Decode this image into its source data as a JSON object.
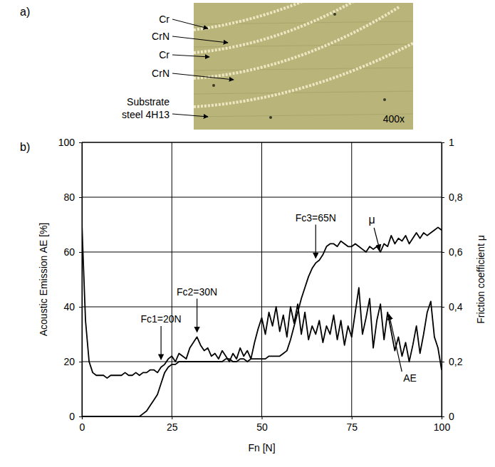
{
  "panel_a": {
    "label": "a)",
    "layers": [
      "Cr",
      "CrN",
      "Cr",
      "CrN"
    ],
    "substrate": "Substrate steel 4H13",
    "magnification": "400x"
  },
  "chart_data": {
    "type": "line",
    "panel_label": "b)",
    "x_label": "Fn [N]",
    "y_label": "Acoustic Emission AE [%]",
    "y2_label": "Friction coefficient μ",
    "xlim": [
      0,
      100
    ],
    "xticks": [
      0,
      25,
      50,
      75,
      100
    ],
    "ylim": [
      0,
      100
    ],
    "yticks": [
      0,
      20,
      40,
      60,
      80,
      100
    ],
    "y2lim": [
      0,
      1
    ],
    "y2ticks": [
      0,
      {
        "value": 0.2,
        "label": "0,2"
      },
      {
        "value": 0.4,
        "label": "0,4"
      },
      {
        "value": 0.6,
        "label": "0,6"
      },
      {
        "value": 0.8,
        "label": "0,8"
      },
      1
    ],
    "grid": true,
    "x": [
      0,
      1,
      2,
      3,
      4,
      5,
      6,
      7,
      8,
      9,
      10,
      11,
      12,
      13,
      14,
      15,
      16,
      17,
      18,
      19,
      20,
      21,
      22,
      23,
      24,
      25,
      26,
      27,
      28,
      29,
      30,
      31,
      32,
      33,
      34,
      35,
      36,
      37,
      38,
      39,
      40,
      41,
      42,
      43,
      44,
      45,
      46,
      47,
      48,
      49,
      50,
      51,
      52,
      53,
      54,
      55,
      56,
      57,
      58,
      59,
      60,
      61,
      62,
      63,
      64,
      65,
      66,
      67,
      68,
      69,
      70,
      71,
      72,
      73,
      74,
      75,
      76,
      77,
      78,
      79,
      80,
      81,
      82,
      83,
      84,
      85,
      86,
      87,
      88,
      89,
      90,
      91,
      92,
      93,
      94,
      95,
      96,
      97,
      98,
      99,
      100
    ],
    "series": [
      {
        "name": "AE",
        "color": "#000000",
        "label_x": 85,
        "values": [
          70,
          35,
          20,
          16,
          15,
          15,
          15,
          14,
          15,
          15,
          15,
          15,
          16,
          15,
          15,
          16,
          15,
          16,
          16,
          17,
          17,
          16,
          18,
          19,
          21,
          22,
          20,
          23,
          22,
          21,
          25,
          27,
          29,
          26,
          24,
          25,
          22,
          23,
          21,
          24,
          22,
          20,
          23,
          21,
          25,
          22,
          24,
          21,
          27,
          32,
          36,
          30,
          38,
          33,
          40,
          31,
          37,
          29,
          40,
          34,
          41,
          30,
          38,
          28,
          33,
          30,
          35,
          27,
          33,
          30,
          37,
          28,
          35,
          26,
          33,
          29,
          38,
          47,
          30,
          36,
          43,
          25,
          35,
          41,
          28,
          38,
          31,
          24,
          29,
          22,
          27,
          20,
          26,
          33,
          23,
          30,
          38,
          42,
          29,
          25,
          17
        ]
      },
      {
        "name": "μ",
        "color": "#000000",
        "axis": "y2",
        "label_x": 83,
        "values": [
          0,
          0,
          0,
          0,
          0,
          0,
          0,
          0,
          0,
          0,
          0,
          0,
          0,
          0,
          0,
          0,
          0,
          0.01,
          0.02,
          0.04,
          0.06,
          0.08,
          0.12,
          0.16,
          0.18,
          0.19,
          0.19,
          0.2,
          0.2,
          0.2,
          0.2,
          0.2,
          0.2,
          0.2,
          0.2,
          0.2,
          0.2,
          0.2,
          0.2,
          0.2,
          0.21,
          0.21,
          0.2,
          0.2,
          0.21,
          0.21,
          0.2,
          0.21,
          0.21,
          0.21,
          0.21,
          0.21,
          0.22,
          0.22,
          0.22,
          0.22,
          0.23,
          0.24,
          0.28,
          0.33,
          0.38,
          0.43,
          0.47,
          0.51,
          0.54,
          0.56,
          0.57,
          0.59,
          0.62,
          0.63,
          0.63,
          0.62,
          0.64,
          0.63,
          0.62,
          0.62,
          0.63,
          0.62,
          0.61,
          0.6,
          0.62,
          0.61,
          0.62,
          0.6,
          0.63,
          0.62,
          0.66,
          0.63,
          0.65,
          0.64,
          0.66,
          0.63,
          0.65,
          0.67,
          0.65,
          0.67,
          0.66,
          0.67,
          0.68,
          0.69,
          0.68
        ]
      }
    ],
    "annotations": [
      {
        "text": "Fc1=20N",
        "x": 22,
        "y": 20
      },
      {
        "text": "Fc2=30N",
        "x": 32,
        "y": 30
      },
      {
        "text": "Fc3=65N",
        "x": 65,
        "y": 57
      }
    ]
  }
}
